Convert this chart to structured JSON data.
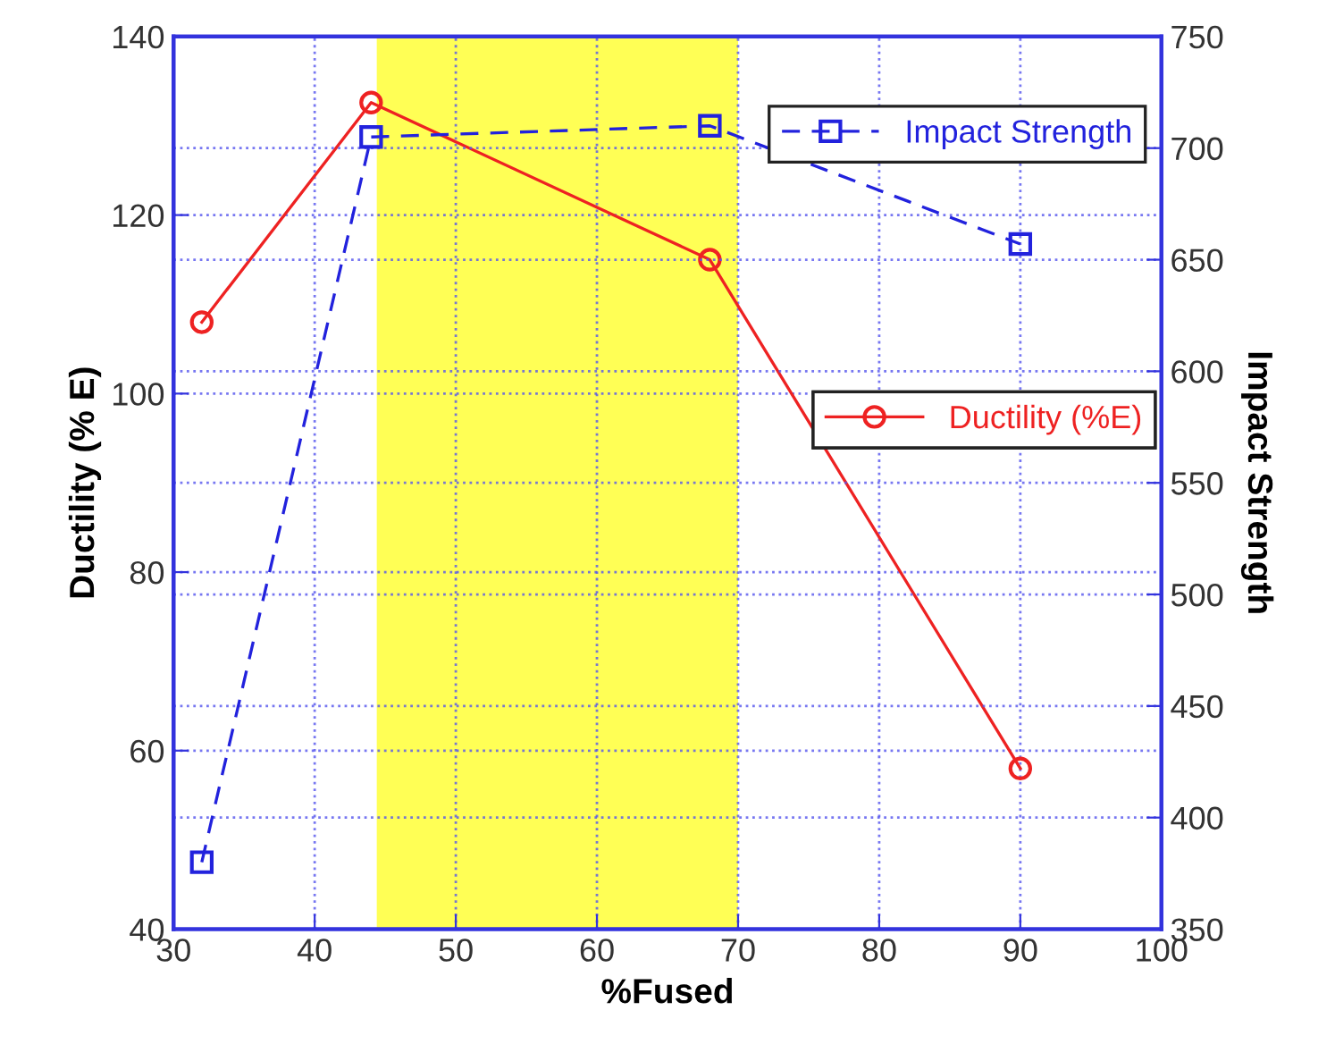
{
  "chart_data": {
    "type": "line",
    "xlabel": "%Fused",
    "ylabel": "Ductility (% E)",
    "y2label": "Impact Strength",
    "xlim": [
      30,
      100
    ],
    "xticks": [
      30,
      40,
      50,
      60,
      70,
      80,
      90,
      100
    ],
    "ylim": [
      40,
      140
    ],
    "yticks": [
      40,
      60,
      80,
      100,
      120,
      140
    ],
    "y2lim": [
      350,
      750
    ],
    "y2ticks": [
      350,
      400,
      450,
      500,
      550,
      600,
      650,
      700,
      750
    ],
    "grid": true,
    "legend": "right",
    "bands": [
      {
        "axis": "x",
        "from": 44.4,
        "to": 70,
        "color": "#ffff55"
      }
    ],
    "series": [
      {
        "name": "Impact Strength",
        "axis": "y2",
        "color": "#2222dd",
        "marker": "square",
        "line_style": "dashed",
        "x": [
          32,
          44,
          68,
          90
        ],
        "values": [
          380,
          705,
          710,
          657
        ]
      },
      {
        "name": "Ductility (%E)",
        "color": "#ee2222",
        "marker": "circle",
        "line_style": "solid",
        "x": [
          32,
          44,
          68,
          90
        ],
        "values": [
          108,
          132.6,
          115,
          58
        ]
      }
    ]
  }
}
